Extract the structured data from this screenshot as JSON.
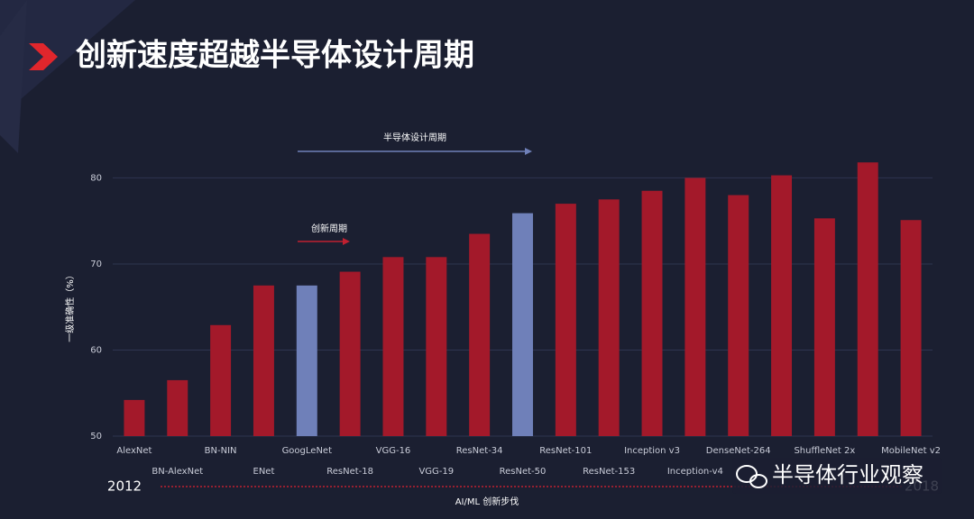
{
  "chart_data": {
    "type": "bar",
    "title": "创新速度超越半导体设计周期",
    "y_label": "一级准确性（%）",
    "x_label": "AI/ML 创新步伐",
    "start_label": "2012",
    "end_label": "2018",
    "annotations": [
      "半导体设计周期",
      "创新周期"
    ],
    "watermark": "半导体行业观察",
    "categories": [
      "AlexNet",
      "BN-AlexNet",
      "BN-NIN",
      "ENet",
      "GoogLeNet",
      "ResNet-18",
      "VGG-16",
      "VGG-19",
      "ResNet-34",
      "ResNet-50",
      "ResNet-101",
      "ResNet-153",
      "Inception v3",
      "Inception-v4",
      "DenseNet-264",
      null,
      "ShuffleNet 2x",
      null,
      "MobileNet v2"
    ],
    "values": [
      54.2,
      56.5,
      62.9,
      67.5,
      67.5,
      69.1,
      70.8,
      70.8,
      73.5,
      75.9,
      77.0,
      77.5,
      78.5,
      80.0,
      78.0,
      80.3,
      75.3,
      81.8,
      75.1
    ],
    "colors": [
      "#a3192a",
      "#a3192a",
      "#a3192a",
      "#a3192a",
      "#6f80b9",
      "#a3192a",
      "#a3192a",
      "#a3192a",
      "#a3192a",
      "#6f80b9",
      "#a3192a",
      "#a3192a",
      "#a3192a",
      "#a3192a",
      "#a3192a",
      "#a3192a",
      "#a3192a",
      "#a3192a",
      "#a3192a"
    ],
    "ylim": [
      50,
      83.5
    ],
    "yticks": [
      50,
      60,
      70,
      80
    ],
    "grid": true
  }
}
